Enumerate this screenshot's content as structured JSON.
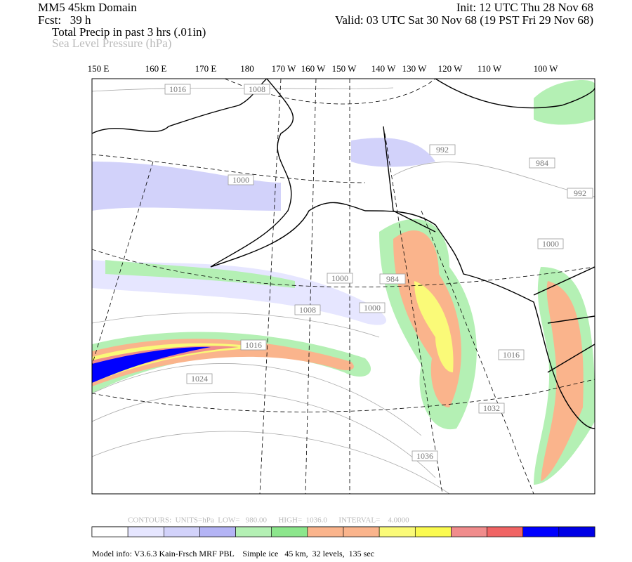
{
  "header": {
    "title": "MM5 45km Domain",
    "forecast": "Fcst:   39 h",
    "field1": "Total Precip in past 3 hrs (.01in)",
    "field2": "Sea Level Pressure (hPa)",
    "init": "Init: 12 UTC Thu 28 Nov 68",
    "valid": "Valid: 03 UTC Sat 30 Nov 68 (19 PST Fri 29 Nov 68)"
  },
  "longitudes": [
    "150 E",
    "160 E",
    "170 E",
    "180",
    "170 W",
    "160 W",
    "150 W",
    "140 W",
    "130 W",
    "120 W",
    "110 W",
    "100 W"
  ],
  "contour_labels": [
    1016,
    1008,
    1000,
    992,
    984,
    992,
    1000,
    1000,
    984,
    1008,
    1000,
    1016,
    1024,
    1016,
    1032,
    1036
  ],
  "contour_info": "CONTOURS:  UNITS=hPa  LOW=   980.00      HIGH=  1036.0      INTERVAL=    4.0000",
  "colorbar": {
    "colors": [
      "#ffffff",
      "#e6e6ff",
      "#d2d2fa",
      "#b4b4f5",
      "#b4f0b4",
      "#8ce68c",
      "#fab48c",
      "#fab48c",
      "#fafa78",
      "#fafa50",
      "#f08c8c",
      "#f06464",
      "#0000ff",
      "#0000e6"
    ]
  },
  "footer": "Model info: V3.6.3 Kain-Frsch MRF PBL    Simple ice   45 km,  32 levels,  135 sec"
}
